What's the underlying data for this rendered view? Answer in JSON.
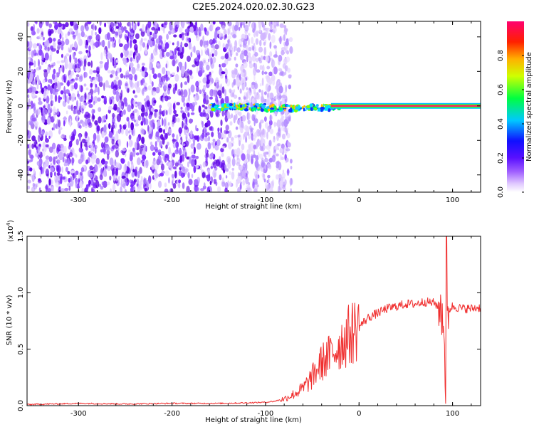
{
  "title": "C2E5.2024.020.02.30.G23",
  "chart_data": [
    {
      "type": "heatmap",
      "xlabel": "Height of straight line (km)",
      "ylabel": "Frequency (Hz)",
      "xlim": [
        -355,
        130
      ],
      "ylim": [
        -50,
        49
      ],
      "x_ticks": [
        -300,
        -200,
        -100,
        0,
        100
      ],
      "x_tick_labels": [
        "-300",
        "-200",
        "-100",
        "0",
        "100"
      ],
      "y_ticks": [
        -40,
        -20,
        0,
        20,
        40
      ],
      "y_tick_labels": [
        "-40",
        "-20",
        "0",
        "20",
        "40"
      ],
      "grid": false,
      "colorbar": {
        "label": "Normalized spectral amplitude",
        "range": [
          0,
          1
        ],
        "ticks": [
          0,
          0.2,
          0.4,
          0.6,
          0.8
        ],
        "tick_labels": [
          "0.0",
          "0.2",
          "0.4",
          "0.6",
          "0.8"
        ],
        "colors": [
          "#ffffff",
          "#c8a0ff",
          "#7a1aff",
          "#1a1aff",
          "#00d8ff",
          "#00ff30",
          "#ffff00",
          "#ff8000",
          "#ff0000",
          "#ff0080"
        ]
      },
      "noise_region_x": [
        -355,
        -80
      ],
      "carrier_line": {
        "x_start": -150,
        "x_end": 130,
        "frequency": 0,
        "amplitude": 0.95
      }
    },
    {
      "type": "line",
      "xlabel": "Height of straight line (km)",
      "ylabel": "SNR (10 * v/v)",
      "y_scale_label": "(x10",
      "y_scale_exponent": "4",
      "y_scale_suffix": ")",
      "xlim": [
        -355,
        130
      ],
      "ylim": [
        0,
        1.5
      ],
      "x_ticks": [
        -300,
        -200,
        -100,
        0,
        100
      ],
      "x_tick_labels": [
        "-300",
        "-200",
        "-100",
        "0",
        "100"
      ],
      "y_ticks": [
        0,
        0.5,
        1.0,
        1.5
      ],
      "y_tick_labels": [
        "0.0",
        "0.5",
        "1.0",
        "1.5"
      ],
      "grid": false,
      "series": [
        {
          "color": "#f03030",
          "x": [
            -355,
            -300,
            -250,
            -200,
            -150,
            -120,
            -100,
            -90,
            -80,
            -70,
            -60,
            -50,
            -45,
            -40,
            -35,
            -30,
            -20,
            -10,
            0,
            10,
            20,
            30,
            40,
            50,
            60,
            70,
            80,
            85,
            90,
            93,
            95,
            100,
            110,
            120,
            130
          ],
          "y": [
            0.01,
            0.02,
            0.015,
            0.02,
            0.02,
            0.025,
            0.03,
            0.04,
            0.06,
            0.1,
            0.15,
            0.25,
            0.32,
            0.38,
            0.42,
            0.45,
            0.55,
            0.63,
            0.7,
            0.78,
            0.82,
            0.86,
            0.88,
            0.9,
            0.9,
            0.92,
            0.91,
            0.88,
            0.82,
            0.1,
            0.84,
            0.88,
            0.86,
            0.86,
            0.87
          ]
        }
      ]
    }
  ]
}
